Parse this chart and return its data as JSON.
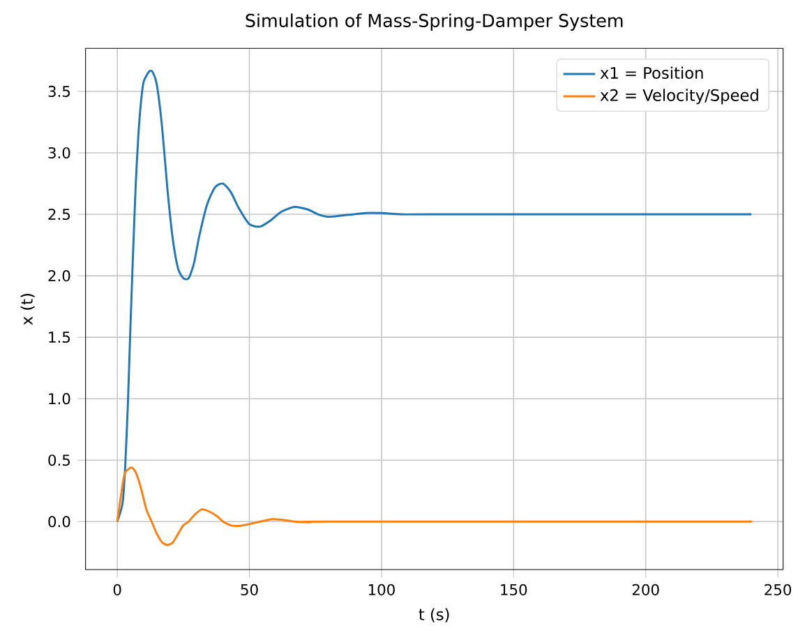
{
  "chart_data": {
    "type": "line",
    "title": "Simulation of Mass-Spring-Damper System",
    "xlabel": "t (s)",
    "ylabel": "x (t)",
    "xlim": [
      -12,
      252
    ],
    "ylim": [
      -0.39,
      3.85
    ],
    "xticks": [
      0,
      50,
      100,
      150,
      200,
      250
    ],
    "yticks": [
      {
        "value": 0,
        "label": "0.0"
      },
      {
        "value": 0.5,
        "label": "0.5"
      },
      {
        "value": 1,
        "label": "1.0"
      },
      {
        "value": 1.5,
        "label": "1.5"
      },
      {
        "value": 2,
        "label": "2.0"
      },
      {
        "value": 2.5,
        "label": "2.5"
      },
      {
        "value": 3,
        "label": "3.0"
      },
      {
        "value": 3.5,
        "label": "3.5"
      }
    ],
    "grid": true,
    "legend": "top right",
    "series": [
      {
        "name": "x1 = Position",
        "color": "#1f77b4",
        "x": [
          0,
          2,
          3,
          4,
          5,
          6,
          7,
          8,
          9,
          10,
          12,
          13.3,
          15,
          17,
          19,
          21,
          23,
          25,
          27,
          29,
          31,
          34,
          37,
          40,
          43,
          46,
          50,
          54,
          58,
          62,
          67,
          72,
          76,
          80,
          85,
          94,
          100,
          108,
          120,
          240
        ],
        "values": [
          0,
          0.15,
          0.45,
          0.95,
          1.6,
          2.2,
          2.75,
          3.15,
          3.42,
          3.58,
          3.66,
          3.66,
          3.55,
          3.2,
          2.7,
          2.3,
          2.06,
          1.98,
          1.98,
          2.1,
          2.32,
          2.58,
          2.72,
          2.75,
          2.68,
          2.55,
          2.42,
          2.4,
          2.45,
          2.52,
          2.56,
          2.54,
          2.5,
          2.48,
          2.49,
          2.51,
          2.51,
          2.5,
          2.5,
          2.5
        ]
      },
      {
        "name": "x2 = Velocity/Speed",
        "color": "#ff7f0e",
        "x": [
          0,
          2,
          3,
          5.3,
          7,
          9,
          11,
          13,
          15,
          17,
          19,
          21,
          23,
          25,
          27,
          29,
          32,
          35,
          38,
          40,
          43,
          46,
          50,
          54,
          59,
          64,
          67,
          73,
          80,
          240
        ],
        "values": [
          0,
          0.3,
          0.4,
          0.44,
          0.4,
          0.27,
          0.1,
          0,
          -0.1,
          -0.17,
          -0.19,
          -0.17,
          -0.1,
          -0.03,
          0,
          0.05,
          0.1,
          0.08,
          0.04,
          0,
          -0.03,
          -0.035,
          -0.02,
          0,
          0.02,
          0.01,
          0,
          -0.005,
          0,
          0
        ]
      }
    ]
  }
}
